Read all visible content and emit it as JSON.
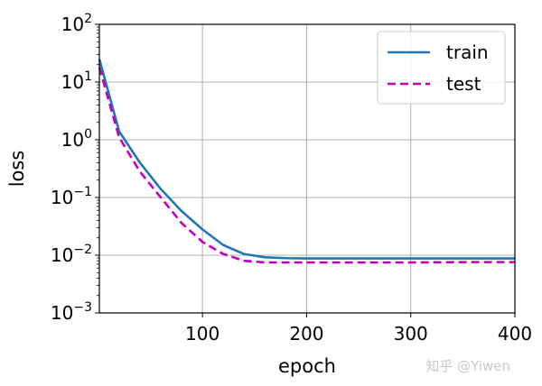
{
  "watermark": "知乎 @Yiwen",
  "chart_data": {
    "type": "line",
    "xlabel": "epoch",
    "ylabel": "loss",
    "xlim": [
      1,
      400
    ],
    "ylim": [
      0.001,
      100
    ],
    "yscale": "log",
    "grid": true,
    "legend_position": "top-right",
    "x_ticks": [
      100,
      200,
      300,
      400
    ],
    "x_tick_labels": [
      "100",
      "200",
      "300",
      "400"
    ],
    "y_ticks": [
      {
        "value": 100,
        "base": "10",
        "exp": "2"
      },
      {
        "value": 10,
        "base": "10",
        "exp": "1"
      },
      {
        "value": 1,
        "base": "10",
        "exp": "0"
      },
      {
        "value": 0.1,
        "base": "10",
        "exp": "−1"
      },
      {
        "value": 0.01,
        "base": "10",
        "exp": "−2"
      },
      {
        "value": 0.001,
        "base": "10",
        "exp": "−3"
      }
    ],
    "series": [
      {
        "name": "train",
        "color": "#1f77b4",
        "dash": "solid",
        "x": [
          1,
          20,
          40,
          60,
          80,
          100,
          120,
          140,
          160,
          180,
          200,
          250,
          300,
          350,
          400
        ],
        "y": [
          25,
          1.4,
          0.4,
          0.14,
          0.058,
          0.028,
          0.015,
          0.0105,
          0.0092,
          0.0089,
          0.0088,
          0.0088,
          0.0088,
          0.0088,
          0.0088
        ]
      },
      {
        "name": "test",
        "color": "#bf00bf",
        "dash": "dashed",
        "x": [
          1,
          20,
          40,
          60,
          80,
          100,
          120,
          140,
          160,
          180,
          200,
          250,
          300,
          350,
          400
        ],
        "y": [
          18,
          1.1,
          0.28,
          0.1,
          0.036,
          0.017,
          0.0105,
          0.008,
          0.0075,
          0.0075,
          0.0075,
          0.0075,
          0.0075,
          0.0076,
          0.0076
        ]
      }
    ]
  }
}
